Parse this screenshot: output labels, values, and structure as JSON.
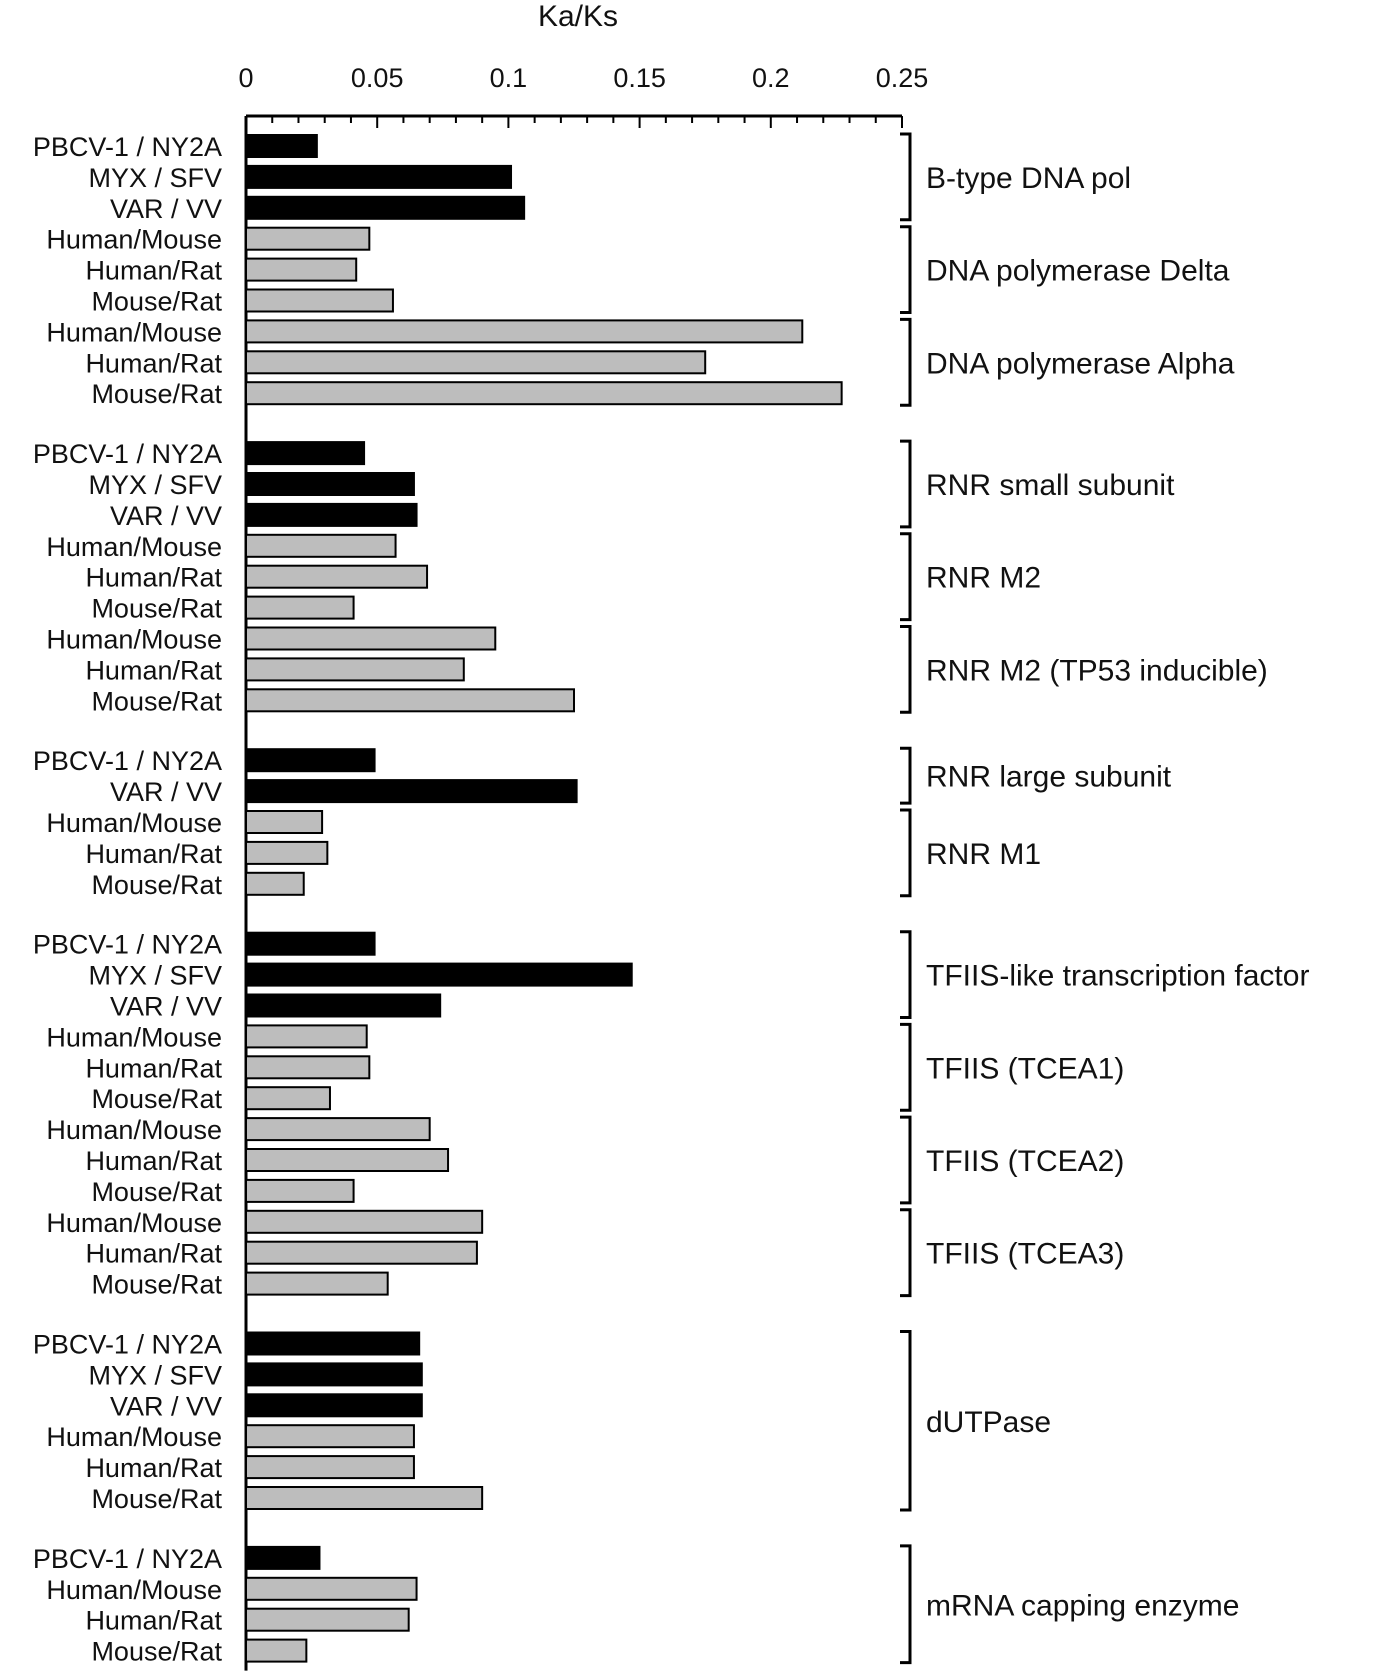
{
  "chart_data": {
    "type": "bar",
    "orientation": "horizontal",
    "xlabel": "Ka/Ks",
    "xlim": [
      0,
      0.25
    ],
    "xticks": [
      "0",
      "0.05",
      "0.1",
      "0.15",
      "0.2",
      "0.25"
    ],
    "grid": false,
    "legend": "none",
    "colors": {
      "viral": "#000000",
      "host": "#bdbdbd"
    },
    "sections": [
      {
        "groups": [
          {
            "label": "B-type DNA pol",
            "rows": [
              {
                "label": "PBCV-1 / NY2A",
                "value": 0.027,
                "kind": "viral"
              },
              {
                "label": "MYX / SFV",
                "value": 0.101,
                "kind": "viral"
              },
              {
                "label": "VAR / VV",
                "value": 0.106,
                "kind": "viral"
              }
            ]
          },
          {
            "label": "DNA polymerase Delta",
            "rows": [
              {
                "label": "Human/Mouse",
                "value": 0.047,
                "kind": "host"
              },
              {
                "label": "Human/Rat",
                "value": 0.042,
                "kind": "host"
              },
              {
                "label": "Mouse/Rat",
                "value": 0.056,
                "kind": "host"
              }
            ]
          },
          {
            "label": "DNA polymerase Alpha",
            "rows": [
              {
                "label": "Human/Mouse",
                "value": 0.212,
                "kind": "host"
              },
              {
                "label": "Human/Rat",
                "value": 0.175,
                "kind": "host"
              },
              {
                "label": "Mouse/Rat",
                "value": 0.227,
                "kind": "host"
              }
            ]
          }
        ]
      },
      {
        "groups": [
          {
            "label": "RNR small subunit",
            "rows": [
              {
                "label": "PBCV-1 / NY2A",
                "value": 0.045,
                "kind": "viral"
              },
              {
                "label": "MYX / SFV",
                "value": 0.064,
                "kind": "viral"
              },
              {
                "label": "VAR / VV",
                "value": 0.065,
                "kind": "viral"
              }
            ]
          },
          {
            "label": "RNR M2",
            "rows": [
              {
                "label": "Human/Mouse",
                "value": 0.057,
                "kind": "host"
              },
              {
                "label": "Human/Rat",
                "value": 0.069,
                "kind": "host"
              },
              {
                "label": "Mouse/Rat",
                "value": 0.041,
                "kind": "host"
              }
            ]
          },
          {
            "label": "RNR M2 (TP53 inducible)",
            "rows": [
              {
                "label": "Human/Mouse",
                "value": 0.095,
                "kind": "host"
              },
              {
                "label": "Human/Rat",
                "value": 0.083,
                "kind": "host"
              },
              {
                "label": "Mouse/Rat",
                "value": 0.125,
                "kind": "host"
              }
            ]
          }
        ]
      },
      {
        "groups": [
          {
            "label": "RNR large subunit",
            "rows": [
              {
                "label": "PBCV-1 / NY2A",
                "value": 0.049,
                "kind": "viral"
              },
              {
                "label": "VAR / VV",
                "value": 0.126,
                "kind": "viral"
              }
            ]
          },
          {
            "label": "RNR M1",
            "rows": [
              {
                "label": "Human/Mouse",
                "value": 0.029,
                "kind": "host"
              },
              {
                "label": "Human/Rat",
                "value": 0.031,
                "kind": "host"
              },
              {
                "label": "Mouse/Rat",
                "value": 0.022,
                "kind": "host"
              }
            ]
          }
        ]
      },
      {
        "groups": [
          {
            "label": "TFIIS-like transcription factor",
            "rows": [
              {
                "label": "PBCV-1 / NY2A",
                "value": 0.049,
                "kind": "viral"
              },
              {
                "label": "MYX / SFV",
                "value": 0.147,
                "kind": "viral"
              },
              {
                "label": "VAR / VV",
                "value": 0.074,
                "kind": "viral"
              }
            ]
          },
          {
            "label": "TFIIS (TCEA1)",
            "rows": [
              {
                "label": "Human/Mouse",
                "value": 0.046,
                "kind": "host"
              },
              {
                "label": "Human/Rat",
                "value": 0.047,
                "kind": "host"
              },
              {
                "label": "Mouse/Rat",
                "value": 0.032,
                "kind": "host"
              }
            ]
          },
          {
            "label": "TFIIS (TCEA2)",
            "rows": [
              {
                "label": "Human/Mouse",
                "value": 0.07,
                "kind": "host"
              },
              {
                "label": "Human/Rat",
                "value": 0.077,
                "kind": "host"
              },
              {
                "label": "Mouse/Rat",
                "value": 0.041,
                "kind": "host"
              }
            ]
          },
          {
            "label": "TFIIS (TCEA3)",
            "rows": [
              {
                "label": "Human/Mouse",
                "value": 0.09,
                "kind": "host"
              },
              {
                "label": "Human/Rat",
                "value": 0.088,
                "kind": "host"
              },
              {
                "label": "Mouse/Rat",
                "value": 0.054,
                "kind": "host"
              }
            ]
          }
        ]
      },
      {
        "groups": [
          {
            "label": "dUTPase",
            "rows": [
              {
                "label": "PBCV-1 / NY2A",
                "value": 0.066,
                "kind": "viral"
              },
              {
                "label": "MYX / SFV",
                "value": 0.067,
                "kind": "viral"
              },
              {
                "label": "VAR / VV",
                "value": 0.067,
                "kind": "viral"
              },
              {
                "label": "Human/Mouse",
                "value": 0.064,
                "kind": "host"
              },
              {
                "label": "Human/Rat",
                "value": 0.064,
                "kind": "host"
              },
              {
                "label": "Mouse/Rat",
                "value": 0.09,
                "kind": "host"
              }
            ]
          }
        ]
      },
      {
        "groups": [
          {
            "label": "mRNA capping enzyme",
            "rows": [
              {
                "label": "PBCV-1 / NY2A",
                "value": 0.028,
                "kind": "viral"
              },
              {
                "label": "Human/Mouse",
                "value": 0.065,
                "kind": "host"
              },
              {
                "label": "Human/Rat",
                "value": 0.062,
                "kind": "host"
              },
              {
                "label": "Mouse/Rat",
                "value": 0.023,
                "kind": "host"
              }
            ]
          }
        ]
      }
    ]
  }
}
